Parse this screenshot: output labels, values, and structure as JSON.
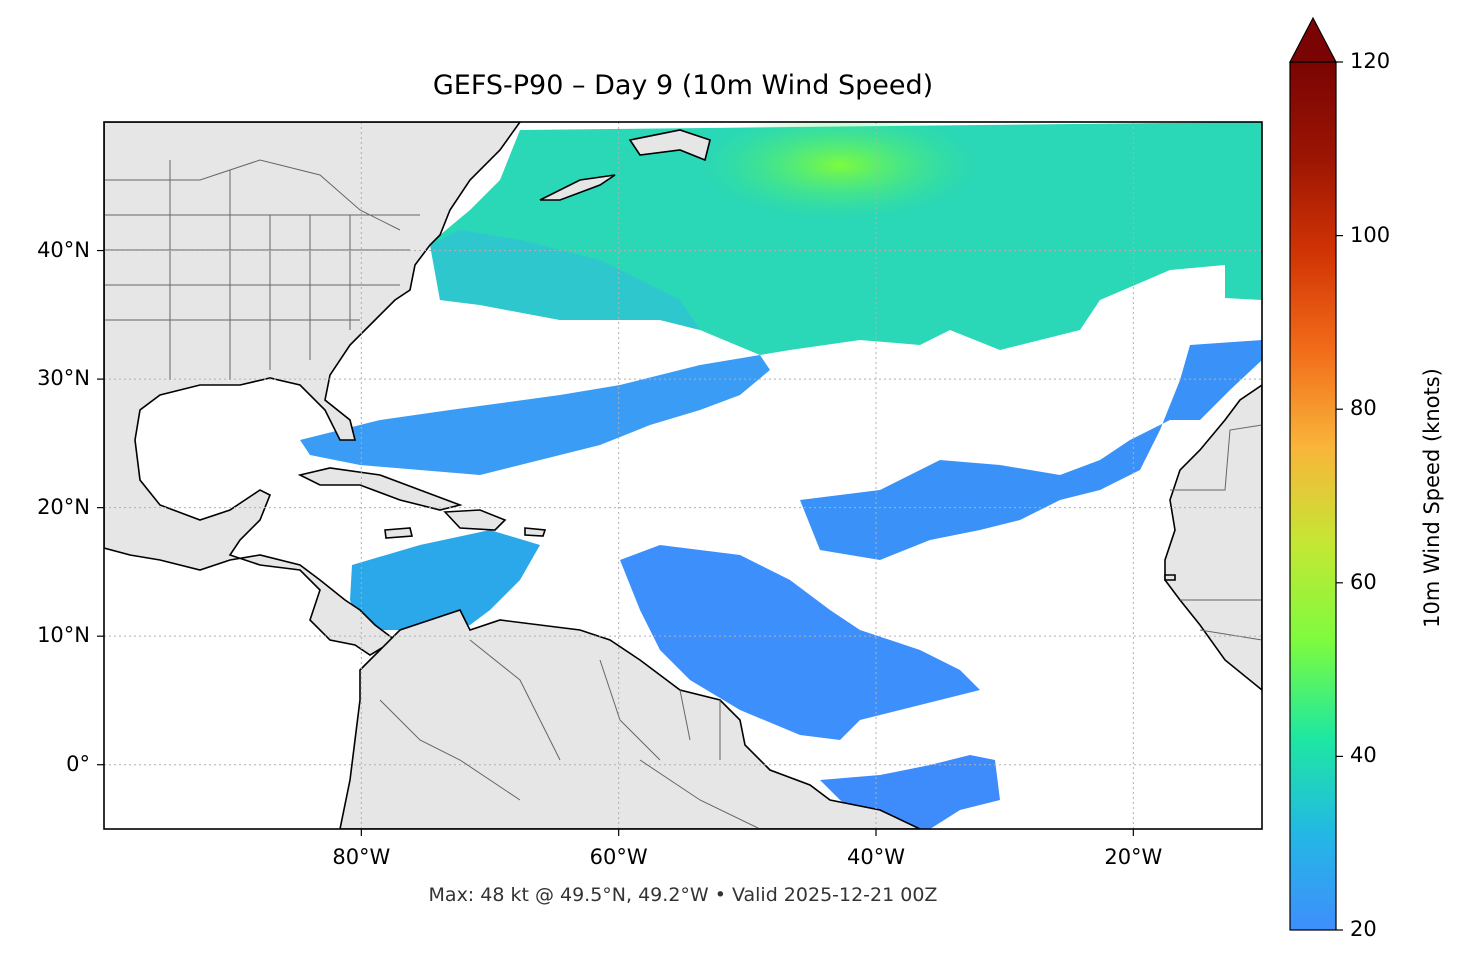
{
  "title": "GEFS-P90 – Day 9 (10m Wind Speed)",
  "footer": "Max: 48 kt @ 49.5°N, 49.2°W • Valid 2025-12-21 00Z",
  "map": {
    "lon_range": [
      -100,
      -10
    ],
    "lat_range": [
      -5,
      50
    ],
    "land_color": "#e6e6e6",
    "coast_color": "#000000",
    "border_color": "#666666",
    "grid": true,
    "lat_ticks": [
      {
        "value": 40,
        "label": "40°N"
      },
      {
        "value": 30,
        "label": "30°N"
      },
      {
        "value": 20,
        "label": "20°N"
      },
      {
        "value": 10,
        "label": "10°N"
      },
      {
        "value": 0,
        "label": "0°"
      }
    ],
    "lon_ticks": [
      {
        "value": -80,
        "label": "80°W"
      },
      {
        "value": -60,
        "label": "60°W"
      },
      {
        "value": -40,
        "label": "40°W"
      },
      {
        "value": -20,
        "label": "20°W"
      }
    ]
  },
  "colorbar": {
    "label": "10m Wind Speed (knots)",
    "min": 20,
    "max": 120,
    "extend": "max",
    "ticks": [
      {
        "value": 120,
        "label": "120"
      },
      {
        "value": 100,
        "label": "100"
      },
      {
        "value": 80,
        "label": "80"
      },
      {
        "value": 60,
        "label": "60"
      },
      {
        "value": 40,
        "label": "40"
      },
      {
        "value": 20,
        "label": "20"
      }
    ],
    "colors": [
      "#3f8efc",
      "#23b8e4",
      "#1ee8a0",
      "#7efb3e",
      "#c4e734",
      "#f9b53a",
      "#f26d1a",
      "#d23504",
      "#9c1503",
      "#7a0403"
    ]
  },
  "wind_regions": [
    {
      "name": "north-atlantic-band",
      "speed_kt": 36
    },
    {
      "name": "north-atlantic-peak",
      "speed_kt": 48
    },
    {
      "name": "subtropical-band",
      "speed_kt": 24
    },
    {
      "name": "caribbean",
      "speed_kt": 26
    },
    {
      "name": "tropical-central",
      "speed_kt": 23
    },
    {
      "name": "eastern-subtropical",
      "speed_kt": 23
    },
    {
      "name": "equatorial-south",
      "speed_kt": 22
    }
  ]
}
